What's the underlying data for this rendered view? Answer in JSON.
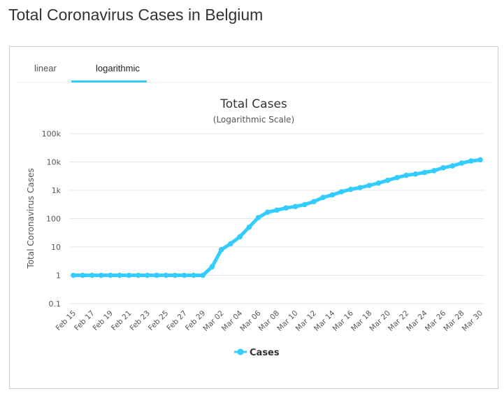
{
  "page": {
    "title": "Total Coronavirus Cases in Belgium"
  },
  "tabs": [
    {
      "label": "linear",
      "active": false
    },
    {
      "label": "logarithmic",
      "active": true
    }
  ],
  "colors": {
    "accent": "#33ccff",
    "series": "#33ccff",
    "grid": "#e6e6e6",
    "text": "#333333"
  },
  "chart_data": {
    "type": "line",
    "title": "Total Cases",
    "subtitle": "(Logarithmic Scale)",
    "ylabel": "Total Coronavirus Cases",
    "xlabel": "",
    "yscale": "log",
    "ylim": [
      0.1,
      100000
    ],
    "yticks": [
      "0.1",
      "1",
      "10",
      "100",
      "1k",
      "10k",
      "100k"
    ],
    "grid": true,
    "legend": "bottom",
    "categories": [
      "Feb 15",
      "Feb 16",
      "Feb 17",
      "Feb 18",
      "Feb 19",
      "Feb 20",
      "Feb 21",
      "Feb 22",
      "Feb 23",
      "Feb 24",
      "Feb 25",
      "Feb 26",
      "Feb 27",
      "Feb 28",
      "Feb 29",
      "Mar 01",
      "Mar 02",
      "Mar 03",
      "Mar 04",
      "Mar 05",
      "Mar 06",
      "Mar 07",
      "Mar 08",
      "Mar 09",
      "Mar 10",
      "Mar 11",
      "Mar 12",
      "Mar 13",
      "Mar 14",
      "Mar 15",
      "Mar 16",
      "Mar 17",
      "Mar 18",
      "Mar 19",
      "Mar 20",
      "Mar 21",
      "Mar 22",
      "Mar 23",
      "Mar 24",
      "Mar 25",
      "Mar 26",
      "Mar 27",
      "Mar 28",
      "Mar 29",
      "Mar 30"
    ],
    "xticks": [
      "Feb 15",
      "Feb 17",
      "Feb 19",
      "Feb 21",
      "Feb 23",
      "Feb 25",
      "Feb 27",
      "Feb 29",
      "Mar 02",
      "Mar 04",
      "Mar 06",
      "Mar 08",
      "Mar 10",
      "Mar 12",
      "Mar 14",
      "Mar 16",
      "Mar 18",
      "Mar 20",
      "Mar 22",
      "Mar 24",
      "Mar 26",
      "Mar 28",
      "Mar 30"
    ],
    "series": [
      {
        "name": "Cases",
        "values": [
          1,
          1,
          1,
          1,
          1,
          1,
          1,
          1,
          1,
          1,
          1,
          1,
          1,
          1,
          1,
          2,
          8,
          13,
          23,
          50,
          109,
          169,
          200,
          239,
          267,
          314,
          399,
          559,
          689,
          886,
          1085,
          1243,
          1486,
          1795,
          2257,
          2815,
          3401,
          3743,
          4269,
          4937,
          6235,
          7284,
          9134,
          10836,
          11899
        ]
      }
    ]
  }
}
